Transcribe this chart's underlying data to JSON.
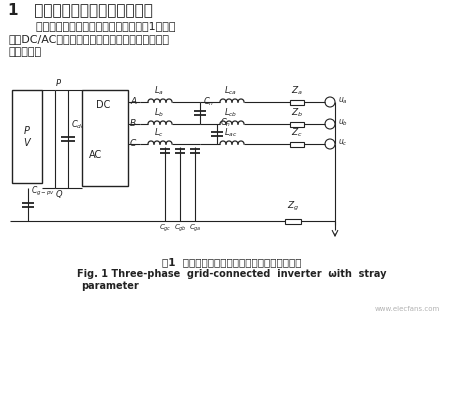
{
  "title": "1   三相光伏逆变器共模电路模型",
  "para1": "    三相光伏并网逆变电路的基本结构如图1所示，",
  "para2": "图中DC/AC模块可以是全桥电路，也可以是多电平",
  "para3": "逆变电路。",
  "fig_caption_cn": "图1  考虑寄生参数的三相光伏并网逆变系统电路",
  "fig_caption_en": "Fig. 1 Three-phase  grid-connected  inverter  ωith  stray",
  "fig_caption_en2": "parameter",
  "bg_color": "#ffffff",
  "lc": "#222222",
  "tc": "#222222"
}
